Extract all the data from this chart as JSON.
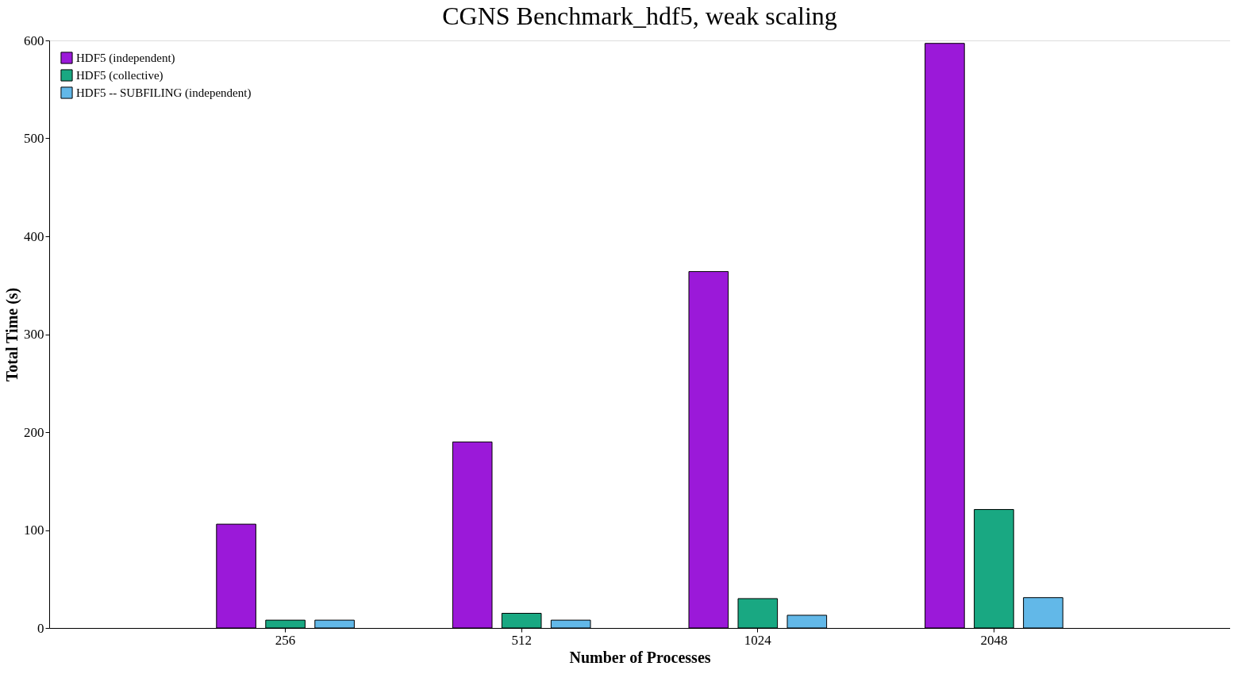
{
  "chart_data": {
    "type": "bar",
    "title": "CGNS Benchmark_hdf5, weak scaling",
    "xlabel": "Number of Processes",
    "ylabel": "Total Time (s)",
    "categories": [
      "256",
      "512",
      "1024",
      "2048"
    ],
    "series": [
      {
        "name": "HDF5 (independent)",
        "color": "#9b19d9",
        "values": [
          106,
          190,
          364,
          597
        ]
      },
      {
        "name": "HDF5 (collective)",
        "color": "#19a882",
        "values": [
          8,
          15,
          30,
          121
        ]
      },
      {
        "name": "HDF5 -- SUBFILING (independent)",
        "color": "#62b8e8",
        "values": [
          8,
          8,
          13,
          31
        ]
      }
    ],
    "ylim": [
      0,
      600
    ],
    "yticks": [
      0,
      100,
      200,
      300,
      400,
      500,
      600
    ],
    "grid": false,
    "legend": "top left"
  }
}
